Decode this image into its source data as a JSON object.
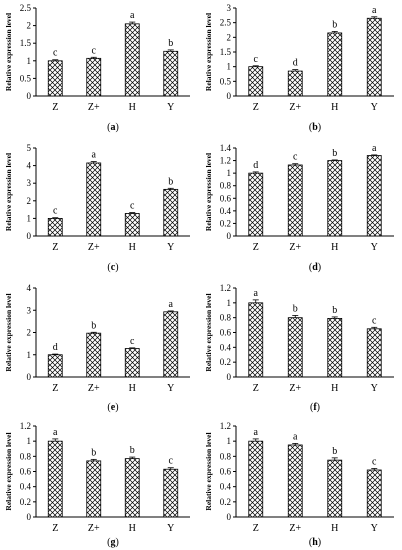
{
  "chart_data": [
    {
      "type": "bar",
      "panel_label": "(a)",
      "ylabel": "Relative expression level",
      "categories": [
        "Z",
        "Z+",
        "H",
        "Y"
      ],
      "values": [
        1.0,
        1.07,
        2.05,
        1.27
      ],
      "errors": [
        0.03,
        0.03,
        0.05,
        0.04
      ],
      "significance": [
        "c",
        "c",
        "a",
        "b"
      ],
      "ylim": [
        0,
        2.5
      ],
      "yticks": [
        "0",
        "0.5",
        "1",
        "1.5",
        "2",
        "2.5"
      ]
    },
    {
      "type": "bar",
      "panel_label": "(b)",
      "ylabel": "Relative expression level",
      "categories": [
        "Z",
        "Z+",
        "H",
        "Y"
      ],
      "values": [
        1.0,
        0.85,
        2.15,
        2.65
      ],
      "errors": [
        0.03,
        0.05,
        0.05,
        0.05
      ],
      "significance": [
        "c",
        "d",
        "b",
        "a"
      ],
      "ylim": [
        0,
        3
      ],
      "yticks": [
        "0",
        "0.5",
        "1",
        "1.5",
        "2",
        "2.5",
        "3"
      ]
    },
    {
      "type": "bar",
      "panel_label": "(c)",
      "ylabel": "Relative expression level",
      "categories": [
        "Z",
        "Z+",
        "H",
        "Y"
      ],
      "values": [
        1.0,
        4.15,
        1.28,
        2.65
      ],
      "errors": [
        0.04,
        0.08,
        0.05,
        0.06
      ],
      "significance": [
        "c",
        "a",
        "c",
        "b"
      ],
      "ylim": [
        0,
        5
      ],
      "yticks": [
        "0",
        "1",
        "2",
        "3",
        "4",
        "5"
      ]
    },
    {
      "type": "bar",
      "panel_label": "(d)",
      "ylabel": "Relative expression level",
      "categories": [
        "Z",
        "Z+",
        "H",
        "Y"
      ],
      "values": [
        1.0,
        1.13,
        1.2,
        1.28
      ],
      "errors": [
        0.02,
        0.02,
        0.01,
        0.01
      ],
      "significance": [
        "d",
        "c",
        "b",
        "a"
      ],
      "ylim": [
        0,
        1.4
      ],
      "yticks": [
        "0",
        "0.2",
        "0.4",
        "0.6",
        "0.8",
        "1",
        "1.2",
        "1.4"
      ]
    },
    {
      "type": "bar",
      "panel_label": "(e)",
      "ylabel": "Relative expression level",
      "categories": [
        "Z",
        "Z+",
        "H",
        "Y"
      ],
      "values": [
        1.0,
        1.97,
        1.28,
        2.93
      ],
      "errors": [
        0.03,
        0.04,
        0.03,
        0.04
      ],
      "significance": [
        "d",
        "b",
        "c",
        "a"
      ],
      "ylim": [
        0,
        4
      ],
      "yticks": [
        "0",
        "1",
        "2",
        "3",
        "4"
      ]
    },
    {
      "type": "bar",
      "panel_label": "(f)",
      "ylabel": "Relative expression level",
      "categories": [
        "Z",
        "Z+",
        "H",
        "Y"
      ],
      "values": [
        1.0,
        0.8,
        0.79,
        0.65
      ],
      "errors": [
        0.04,
        0.03,
        0.02,
        0.02
      ],
      "significance": [
        "a",
        "b",
        "b",
        "c"
      ],
      "ylim": [
        0,
        1.2
      ],
      "yticks": [
        "0",
        "0.2",
        "0.4",
        "0.6",
        "0.8",
        "1",
        "1.2"
      ]
    },
    {
      "type": "bar",
      "panel_label": "(g)",
      "ylabel": "Relative expression level",
      "categories": [
        "Z",
        "Z+",
        "H",
        "Y"
      ],
      "values": [
        1.0,
        0.74,
        0.77,
        0.63
      ],
      "errors": [
        0.03,
        0.02,
        0.02,
        0.02
      ],
      "significance": [
        "a",
        "b",
        "b",
        "c"
      ],
      "ylim": [
        0,
        1.2
      ],
      "yticks": [
        "0",
        "0.2",
        "0.4",
        "0.6",
        "0.8",
        "1",
        "1.2"
      ]
    },
    {
      "type": "bar",
      "panel_label": "(h)",
      "ylabel": "Relative expression level",
      "categories": [
        "Z",
        "Z+",
        "H",
        "Y"
      ],
      "values": [
        1.0,
        0.95,
        0.75,
        0.62
      ],
      "errors": [
        0.03,
        0.02,
        0.03,
        0.02
      ],
      "significance": [
        "a",
        "a",
        "b",
        "c"
      ],
      "ylim": [
        0,
        1.2
      ],
      "yticks": [
        "0",
        "0.2",
        "0.4",
        "0.6",
        "0.8",
        "1",
        "1.2"
      ]
    }
  ]
}
